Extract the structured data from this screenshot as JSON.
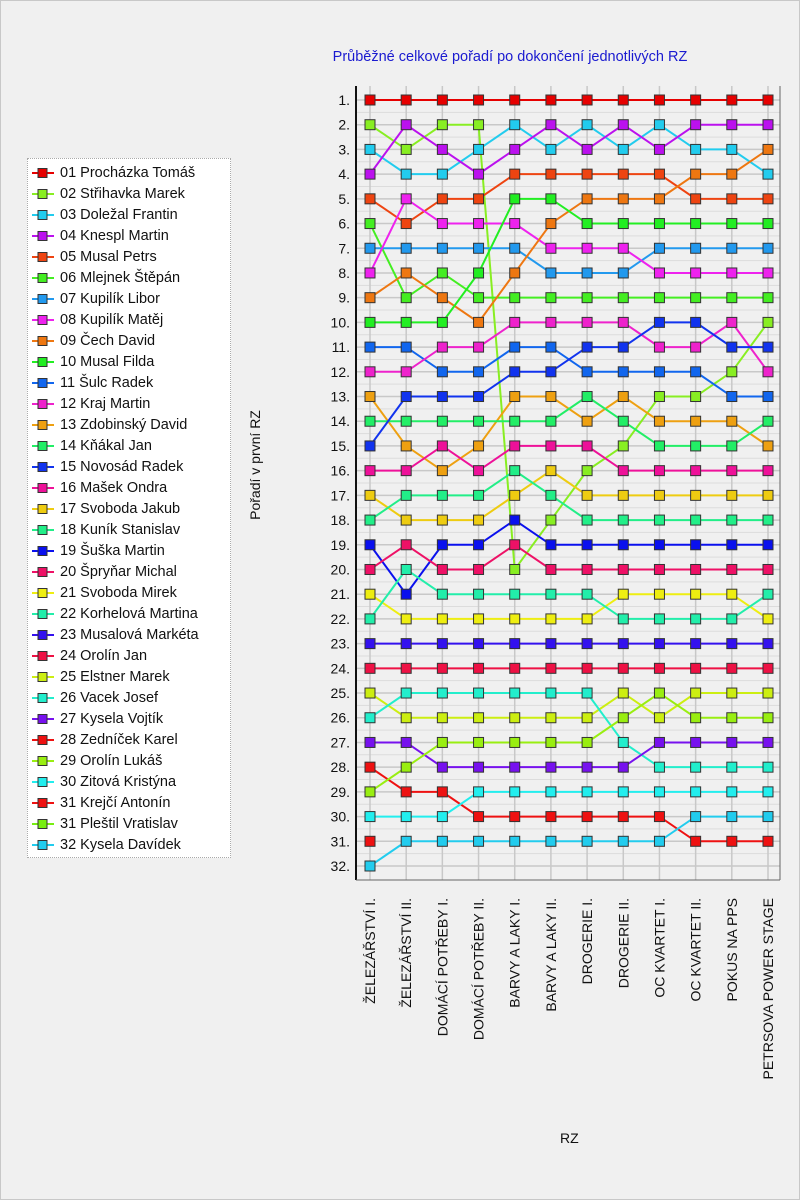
{
  "chart_data": {
    "type": "line",
    "title": "Průběžné celkové pořadí po dokončení jednotlivých RZ",
    "xlabel": "RZ",
    "ylabel": "Pořadí v první RZ",
    "ylim": [
      1,
      32
    ],
    "y_inverted": true,
    "grid": true,
    "legend_position": "left",
    "categories": [
      "ŽELEZÁŘSTVÍ I.",
      "ŽELEZÁŘSTVÍ II.",
      "DOMÁCÍ POTŘEBY I.",
      "DOMÁCÍ POTŘEBY II.",
      "BARVY A LAKY I.",
      "BARVY A LAKY II.",
      "DROGERIE I.",
      "DROGERIE II.",
      "OC KVARTET I.",
      "OC KVARTET II.",
      "POKUS NA PPS",
      "PETRSOVA POWER STAGE"
    ],
    "ytick_labels": [
      "1.",
      "2.",
      "3.",
      "4.",
      "5.",
      "6.",
      "7.",
      "8.",
      "9.",
      "10.",
      "11.",
      "12.",
      "13.",
      "14.",
      "15.",
      "16.",
      "17.",
      "18.",
      "19.",
      "20.",
      "21.",
      "22.",
      "23.",
      "24.",
      "25.",
      "26.",
      "27.",
      "28.",
      "29.",
      "30.",
      "31.",
      "32."
    ],
    "series": [
      {
        "name": "01 Procházka Tomáš",
        "color": "#e60000",
        "values": [
          1,
          1,
          1,
          1,
          1,
          1,
          1,
          1,
          1,
          1,
          1,
          1
        ]
      },
      {
        "name": "02 Střihavka Marek",
        "color": "#88ee22",
        "values": [
          2,
          3,
          2,
          2,
          20,
          18,
          16,
          15,
          13,
          13,
          12,
          10
        ]
      },
      {
        "name": "03 Doležal Frantin",
        "color": "#22ccee",
        "values": [
          3,
          4,
          4,
          3,
          2,
          3,
          2,
          3,
          2,
          3,
          3,
          4
        ]
      },
      {
        "name": "04 Knespl Martin",
        "color": "#bb11ee",
        "values": [
          4,
          2,
          3,
          4,
          3,
          2,
          3,
          2,
          3,
          2,
          2,
          2
        ]
      },
      {
        "name": "05 Musal Petrs",
        "color": "#ee4411",
        "values": [
          5,
          6,
          5,
          5,
          4,
          4,
          4,
          4,
          4,
          5,
          5,
          5
        ]
      },
      {
        "name": "06 Mlejnek Štěpán",
        "color": "#44ee22",
        "values": [
          6,
          9,
          8,
          9,
          9,
          9,
          9,
          9,
          9,
          9,
          9,
          9
        ]
      },
      {
        "name": "07 Kupilík Libor",
        "color": "#2299ee",
        "values": [
          7,
          7,
          7,
          7,
          7,
          8,
          8,
          8,
          7,
          7,
          7,
          7
        ]
      },
      {
        "name": "08 Kupilík Matěj",
        "color": "#ee22ee",
        "values": [
          8,
          5,
          6,
          6,
          6,
          7,
          7,
          7,
          8,
          8,
          8,
          8
        ]
      },
      {
        "name": "09 Čech David",
        "color": "#ee7711",
        "values": [
          9,
          8,
          9,
          10,
          8,
          6,
          5,
          5,
          5,
          4,
          4,
          3
        ]
      },
      {
        "name": "10 Musal Filda",
        "color": "#22ee22",
        "values": [
          10,
          10,
          10,
          8,
          5,
          5,
          6,
          6,
          6,
          6,
          6,
          6
        ]
      },
      {
        "name": "11 Šulc Radek",
        "color": "#1166ee",
        "values": [
          11,
          11,
          12,
          12,
          11,
          11,
          12,
          12,
          12,
          12,
          13,
          13
        ]
      },
      {
        "name": "12 Kraj Martin",
        "color": "#ee22cc",
        "values": [
          12,
          12,
          11,
          11,
          10,
          10,
          10,
          10,
          11,
          11,
          10,
          12
        ]
      },
      {
        "name": "13 Zdobinský David",
        "color": "#eea011",
        "values": [
          13,
          15,
          16,
          15,
          13,
          13,
          14,
          13,
          14,
          14,
          14,
          15
        ]
      },
      {
        "name": "14 Kňákal Jan",
        "color": "#22ee66",
        "values": [
          14,
          14,
          14,
          14,
          14,
          14,
          13,
          14,
          15,
          15,
          15,
          14
        ]
      },
      {
        "name": "15 Novosád Radek",
        "color": "#1133ee",
        "values": [
          15,
          13,
          13,
          13,
          12,
          12,
          11,
          11,
          10,
          10,
          11,
          11
        ]
      },
      {
        "name": "16 Mašek Ondra",
        "color": "#ee1199",
        "values": [
          16,
          16,
          15,
          16,
          15,
          15,
          15,
          16,
          16,
          16,
          16,
          16
        ]
      },
      {
        "name": "17 Svoboda Jakub",
        "color": "#eecc11",
        "values": [
          17,
          18,
          18,
          18,
          17,
          16,
          17,
          17,
          17,
          17,
          17,
          17
        ]
      },
      {
        "name": "18 Kuník Stanislav",
        "color": "#22ee88",
        "values": [
          18,
          17,
          17,
          17,
          16,
          17,
          18,
          18,
          18,
          18,
          18,
          18
        ]
      },
      {
        "name": "19 Šuška Martin",
        "color": "#0a10ee",
        "values": [
          19,
          21,
          19,
          19,
          18,
          19,
          19,
          19,
          19,
          19,
          19,
          19
        ]
      },
      {
        "name": "20 Špryňar Michal",
        "color": "#ee1166",
        "values": [
          20,
          19,
          20,
          20,
          19,
          20,
          20,
          20,
          20,
          20,
          20,
          20
        ]
      },
      {
        "name": "21 Svoboda Mirek",
        "color": "#eeee11",
        "values": [
          21,
          22,
          22,
          22,
          22,
          22,
          22,
          21,
          21,
          21,
          21,
          22
        ]
      },
      {
        "name": "22 Korhelová Martina",
        "color": "#22eeaa",
        "values": [
          22,
          20,
          21,
          21,
          21,
          21,
          21,
          22,
          22,
          22,
          22,
          21
        ]
      },
      {
        "name": "23 Musalová Markéta",
        "color": "#3311ee",
        "values": [
          23,
          23,
          23,
          23,
          23,
          23,
          23,
          23,
          23,
          23,
          23,
          23
        ]
      },
      {
        "name": "24 Orolín Jan",
        "color": "#ee1144",
        "values": [
          24,
          24,
          24,
          24,
          24,
          24,
          24,
          24,
          24,
          24,
          24,
          24
        ]
      },
      {
        "name": "25 Elstner Marek",
        "color": "#ccee11",
        "values": [
          25,
          26,
          26,
          26,
          26,
          26,
          26,
          25,
          26,
          25,
          25,
          25
        ]
      },
      {
        "name": "26 Vacek Josef",
        "color": "#22eecc",
        "values": [
          26,
          25,
          25,
          25,
          25,
          25,
          25,
          27,
          28,
          28,
          28,
          28
        ]
      },
      {
        "name": "27 Kysela Vojtík",
        "color": "#7711ee",
        "values": [
          27,
          27,
          28,
          28,
          28,
          28,
          28,
          28,
          27,
          27,
          27,
          27
        ]
      },
      {
        "name": "28 Zedníček Karel",
        "color": "#ee1111",
        "values": [
          28,
          29,
          29,
          30,
          30,
          30,
          30,
          30,
          30,
          31,
          31,
          31
        ]
      },
      {
        "name": "29 Orolín Lukáš",
        "color": "#99ee11",
        "values": [
          29,
          28,
          27,
          27,
          27,
          27,
          27,
          26,
          25,
          26,
          26,
          26
        ]
      },
      {
        "name": "30 Zitová Kristýna",
        "color": "#22eeee",
        "values": [
          30,
          30,
          30,
          29,
          29,
          29,
          29,
          29,
          29,
          29,
          29,
          29
        ]
      },
      {
        "name": "31 Krejčí Antonín",
        "color": "#ee1111",
        "values": [
          31,
          null,
          null,
          null,
          null,
          null,
          null,
          null,
          null,
          null,
          null,
          null
        ]
      },
      {
        "name": "31 Pleštil Vratislav",
        "color": "#77ee11",
        "values": [
          null,
          null,
          null,
          null,
          null,
          null,
          null,
          null,
          null,
          null,
          null,
          null
        ]
      },
      {
        "name": "32 Kysela Davídek",
        "color": "#22ccee",
        "values": [
          32,
          31,
          31,
          31,
          31,
          31,
          31,
          31,
          31,
          30,
          30,
          30
        ]
      }
    ]
  }
}
